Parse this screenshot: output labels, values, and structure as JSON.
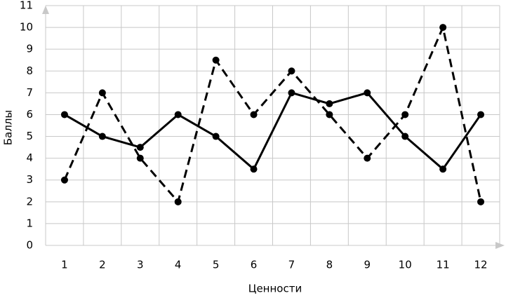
{
  "chart_data": {
    "type": "line",
    "xlabel": "Ценности",
    "ylabel": "Баллы",
    "categories": [
      "1",
      "2",
      "3",
      "4",
      "5",
      "6",
      "7",
      "8",
      "9",
      "10",
      "11",
      "12"
    ],
    "series": [
      {
        "color": "#000000",
        "line_style": "solid",
        "values": [
          6,
          5,
          4.5,
          6,
          5,
          3.5,
          7,
          6.5,
          7,
          5,
          3.5,
          6
        ]
      },
      {
        "color": "#000000",
        "line_style": "dashed",
        "values": [
          3,
          7,
          4,
          2,
          8.5,
          6,
          8,
          6,
          4,
          6,
          10,
          2
        ]
      }
    ],
    "ylim": [
      0,
      11
    ],
    "yticks": [
      0,
      1,
      2,
      3,
      4,
      5,
      6,
      7,
      8,
      9,
      10,
      11
    ],
    "grid": true
  }
}
